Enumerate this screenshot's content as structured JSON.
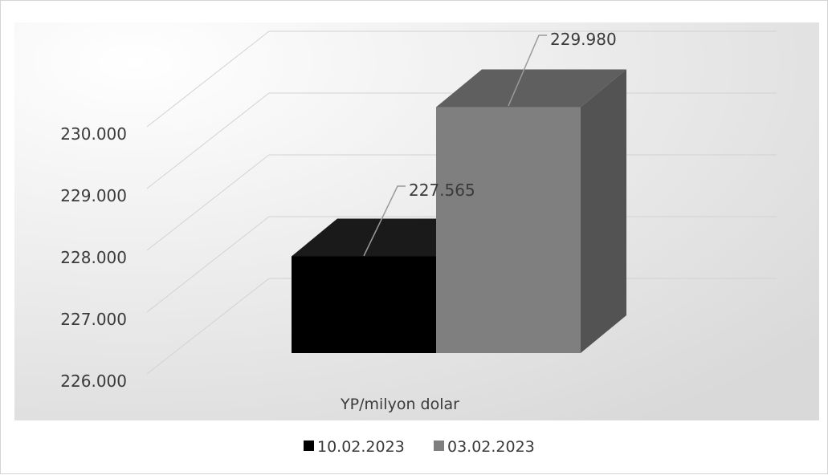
{
  "chart_data": {
    "type": "bar",
    "categories": [
      "YP/milyon dolar"
    ],
    "series": [
      {
        "name": "10.02.2023",
        "values": [
          227.565
        ],
        "label": "227.565",
        "color": "#000000"
      },
      {
        "name": "03.02.2023",
        "values": [
          229.98
        ],
        "label": "229.980",
        "color": "#7f7f7f"
      }
    ],
    "yticks": [
      {
        "value": 226,
        "label": "226.000"
      },
      {
        "value": 227,
        "label": "227.000"
      },
      {
        "value": 228,
        "label": "228.000"
      },
      {
        "value": 229,
        "label": "229.000"
      },
      {
        "value": 230,
        "label": "230.000"
      }
    ],
    "ylim": [
      226,
      231
    ],
    "grid": true,
    "legend_position": "bottom",
    "title": "",
    "xlabel": "",
    "ylabel": ""
  }
}
